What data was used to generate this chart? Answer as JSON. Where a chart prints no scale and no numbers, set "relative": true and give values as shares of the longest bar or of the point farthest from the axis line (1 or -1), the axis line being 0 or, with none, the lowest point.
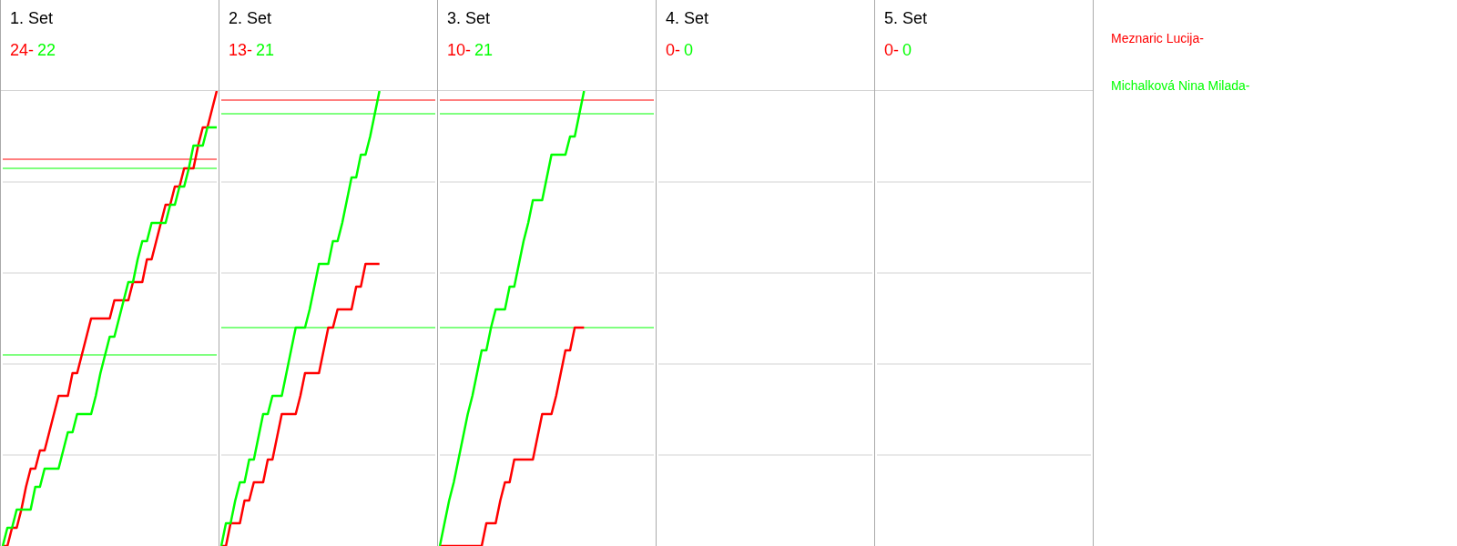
{
  "chart_data": [
    {
      "type": "line",
      "title": "1. Set",
      "annotations": [
        "24-",
        "22"
      ],
      "relative": true,
      "grid": true,
      "legend": "right",
      "categories": [
        null,
        null,
        null,
        null,
        null,
        null,
        null,
        null,
        null,
        null,
        null,
        null,
        null,
        null,
        null,
        null,
        null,
        null,
        null,
        null,
        null,
        null,
        null,
        null,
        null,
        null,
        null,
        null,
        null,
        null,
        null,
        null,
        null,
        null,
        null,
        null,
        null,
        null,
        null,
        null,
        null,
        null,
        null,
        null,
        null,
        null,
        null
      ],
      "series": [
        {
          "name": "Meznaric Lucija-",
          "color": "#ff0000",
          "values": [
            0,
            0,
            0.04,
            0.04,
            0.08,
            0.13,
            0.17,
            0.17,
            0.21,
            0.21,
            0.25,
            0.29,
            0.33,
            0.33,
            0.33,
            0.38,
            0.38,
            0.42,
            0.46,
            0.5,
            0.5,
            0.5,
            0.5,
            0.5,
            0.54,
            0.54,
            0.54,
            0.54,
            0.58,
            0.58,
            0.58,
            0.63,
            0.63,
            0.67,
            0.71,
            0.75,
            0.75,
            0.79,
            0.79,
            0.83,
            0.83,
            0.83,
            0.88,
            0.92,
            0.92,
            0.96,
            1
          ]
        },
        {
          "name": "Michalková Nina Milada-",
          "color": "#00ff00",
          "values": [
            0,
            0.04,
            0.04,
            0.08,
            0.08,
            0.08,
            0.08,
            0.13,
            0.13,
            0.17,
            0.17,
            0.17,
            0.17,
            0.21,
            0.25,
            0.25,
            0.29,
            0.29,
            0.29,
            0.29,
            0.33,
            0.38,
            0.42,
            0.46,
            0.46,
            0.5,
            0.54,
            0.58,
            0.58,
            0.63,
            0.67,
            0.67,
            0.71,
            0.71,
            0.71,
            0.71,
            0.75,
            0.75,
            0.79,
            0.79,
            0.83,
            0.88,
            0.88,
            0.88,
            0.92,
            0.92,
            0.92
          ]
        }
      ],
      "ref_lines": [
        {
          "axis": "y",
          "value": 0.85,
          "color": "#ff0000"
        },
        {
          "axis": "y",
          "value": 0.83,
          "color": "#00ff00"
        },
        {
          "axis": "y",
          "value": 0.42,
          "color": "#00ff00"
        }
      ]
    },
    {
      "type": "line",
      "title": "2. Set",
      "annotations": [
        "13-",
        "21"
      ],
      "relative": true,
      "grid": true,
      "categories": [
        null,
        null,
        null,
        null,
        null,
        null,
        null,
        null,
        null,
        null,
        null,
        null,
        null,
        null,
        null,
        null,
        null,
        null,
        null,
        null,
        null,
        null,
        null,
        null,
        null,
        null,
        null,
        null,
        null,
        null,
        null,
        null,
        null,
        null,
        null,
        null,
        null,
        null,
        null,
        null,
        null,
        null,
        null,
        null,
        null,
        null,
        null
      ],
      "series": [
        {
          "color": "#ff0000",
          "values": [
            0,
            0,
            0.05,
            0.05,
            0.05,
            0.1,
            0.1,
            0.14,
            0.14,
            0.14,
            0.19,
            0.19,
            0.24,
            0.29,
            0.29,
            0.29,
            0.29,
            0.33,
            0.38,
            0.38,
            0.38,
            0.38,
            0.43,
            0.48,
            0.48,
            0.52,
            0.52,
            0.52,
            0.52,
            0.57,
            0.57,
            0.62,
            0.62,
            0.62,
            0.62,
            null,
            null,
            null,
            null,
            null,
            null,
            null,
            null,
            null,
            null,
            null,
            null
          ]
        },
        {
          "color": "#00ff00",
          "values": [
            0,
            0.05,
            0.05,
            0.1,
            0.14,
            0.14,
            0.19,
            0.19,
            0.24,
            0.29,
            0.29,
            0.33,
            0.33,
            0.33,
            0.38,
            0.43,
            0.48,
            0.48,
            0.48,
            0.52,
            0.57,
            0.62,
            0.62,
            0.62,
            0.67,
            0.67,
            0.71,
            0.76,
            0.81,
            0.81,
            0.86,
            0.86,
            0.9,
            0.95,
            1,
            null,
            null,
            null,
            null,
            null,
            null,
            null,
            null,
            null,
            null,
            null,
            null
          ]
        }
      ],
      "ref_lines": [
        {
          "axis": "y",
          "value": 0.98,
          "color": "#ff0000"
        },
        {
          "axis": "y",
          "value": 0.95,
          "color": "#00ff00"
        },
        {
          "axis": "y",
          "value": 0.48,
          "color": "#00ff00"
        }
      ]
    },
    {
      "type": "line",
      "title": "3. Set",
      "annotations": [
        "10-",
        "21"
      ],
      "relative": true,
      "grid": true,
      "categories": [
        null,
        null,
        null,
        null,
        null,
        null,
        null,
        null,
        null,
        null,
        null,
        null,
        null,
        null,
        null,
        null,
        null,
        null,
        null,
        null,
        null,
        null,
        null,
        null,
        null,
        null,
        null,
        null,
        null,
        null,
        null,
        null,
        null,
        null,
        null,
        null,
        null,
        null,
        null,
        null,
        null,
        null,
        null,
        null,
        null,
        null,
        null
      ],
      "series": [
        {
          "color": "#ff0000",
          "values": [
            0,
            0,
            0,
            0,
            0,
            0,
            0,
            0,
            0,
            0,
            0.05,
            0.05,
            0.05,
            0.1,
            0.14,
            0.14,
            0.19,
            0.19,
            0.19,
            0.19,
            0.19,
            0.24,
            0.29,
            0.29,
            0.29,
            0.33,
            0.38,
            0.43,
            0.43,
            0.48,
            0.48,
            0.48,
            null,
            null,
            null,
            null,
            null,
            null,
            null,
            null,
            null,
            null,
            null,
            null,
            null,
            null,
            null
          ]
        },
        {
          "color": "#00ff00",
          "values": [
            0,
            0.05,
            0.1,
            0.14,
            0.19,
            0.24,
            0.29,
            0.33,
            0.38,
            0.43,
            0.43,
            0.48,
            0.52,
            0.52,
            0.52,
            0.57,
            0.57,
            0.62,
            0.67,
            0.71,
            0.76,
            0.76,
            0.76,
            0.81,
            0.86,
            0.86,
            0.86,
            0.86,
            0.9,
            0.9,
            0.95,
            1,
            null,
            null,
            null,
            null,
            null,
            null,
            null,
            null,
            null,
            null,
            null,
            null,
            null,
            null,
            null
          ]
        }
      ],
      "ref_lines": [
        {
          "axis": "y",
          "value": 0.98,
          "color": "#ff0000"
        },
        {
          "axis": "y",
          "value": 0.95,
          "color": "#00ff00"
        },
        {
          "axis": "y",
          "value": 0.48,
          "color": "#00ff00"
        }
      ]
    },
    {
      "type": "other",
      "title": "4. Set",
      "annotations": [
        "0-",
        "0"
      ],
      "series": [
        {
          "color": "#ff0000"
        },
        {
          "color": "#00ff00"
        }
      ]
    },
    {
      "type": "other",
      "title": "5. Set",
      "annotations": [
        "0-",
        "0"
      ],
      "series": [
        {
          "color": "#ff0000"
        },
        {
          "color": "#00ff00"
        }
      ]
    }
  ]
}
